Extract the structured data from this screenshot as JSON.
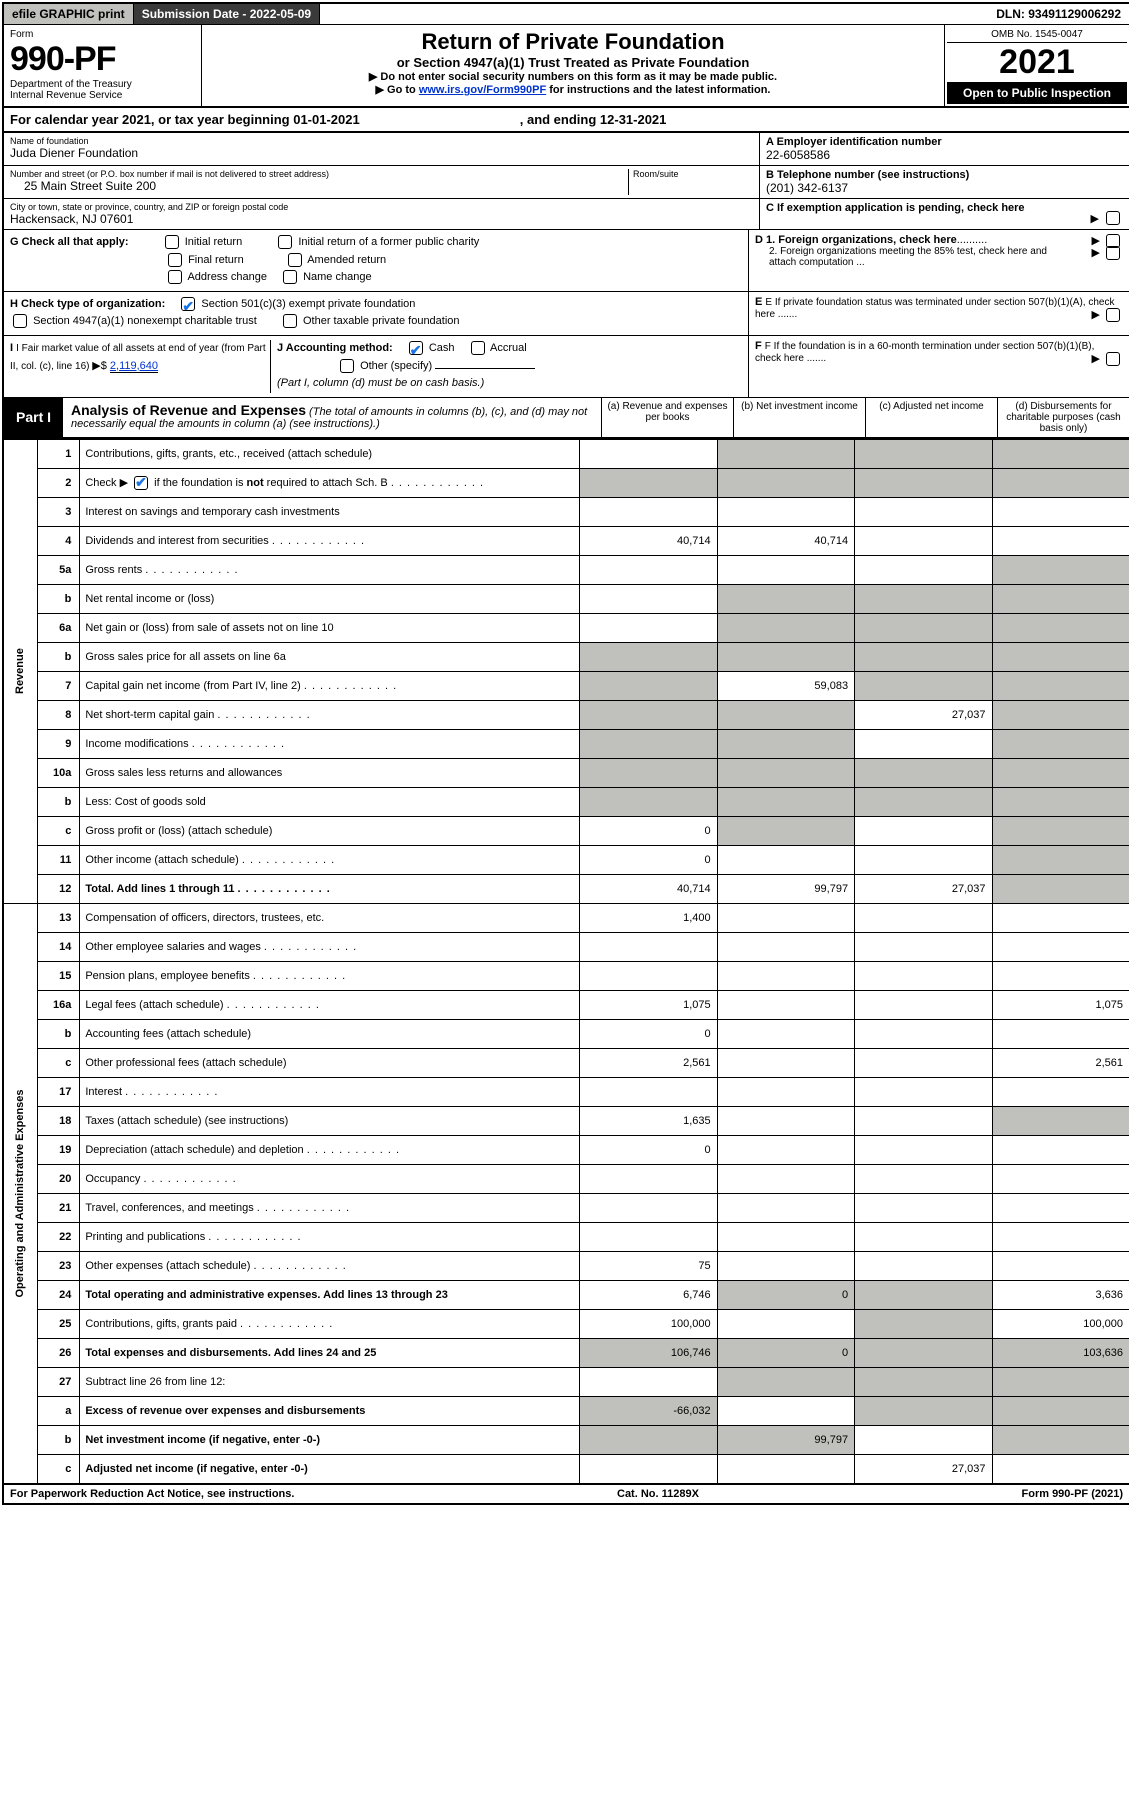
{
  "topbar": {
    "efile": "efile GRAPHIC print",
    "submission_label": "Submission Date - 2022-05-09",
    "dln": "DLN: 93491129006292"
  },
  "header": {
    "form_word": "Form",
    "form_num": "990-PF",
    "dept": "Department of the Treasury",
    "irs": "Internal Revenue Service",
    "title": "Return of Private Foundation",
    "subtitle": "or Section 4947(a)(1) Trust Treated as Private Foundation",
    "instr1": "▶ Do not enter social security numbers on this form as it may be made public.",
    "instr2_pre": "▶ Go to ",
    "instr2_link": "www.irs.gov/Form990PF",
    "instr2_post": " for instructions and the latest information.",
    "omb": "OMB No. 1545-0047",
    "year": "2021",
    "open": "Open to Public Inspection"
  },
  "cal": {
    "label": "For calendar year 2021, or tax year beginning 01-01-2021",
    "ending": ", and ending 12-31-2021"
  },
  "foundation": {
    "name_label": "Name of foundation",
    "name": "Juda Diener Foundation",
    "addr_label": "Number and street (or P.O. box number if mail is not delivered to street address)",
    "room_label": "Room/suite",
    "addr": "25 Main Street Suite 200",
    "city_label": "City or town, state or province, country, and ZIP or foreign postal code",
    "city": "Hackensack, NJ  07601",
    "ein_label": "A Employer identification number",
    "ein": "22-6058586",
    "phone_label": "B Telephone number (see instructions)",
    "phone": "(201) 342-6137",
    "c_label": "C If exemption application is pending, check here"
  },
  "checks": {
    "g_label": "G Check all that apply:",
    "initial": "Initial return",
    "initial_former": "Initial return of a former public charity",
    "final": "Final return",
    "amended": "Amended return",
    "addr_change": "Address change",
    "name_change": "Name change",
    "d1": "D 1. Foreign organizations, check here",
    "d2": "2. Foreign organizations meeting the 85% test, check here and attach computation ...",
    "h_label": "H Check type of organization:",
    "h_501c3": "Section 501(c)(3) exempt private foundation",
    "h_4947": "Section 4947(a)(1) nonexempt charitable trust",
    "h_other": "Other taxable private foundation",
    "e_label": "E  If private foundation status was terminated under section 507(b)(1)(A), check here .......",
    "i_label": "I Fair market value of all assets at end of year (from Part II, col. (c), line 16) ",
    "i_arrow": "▶$",
    "i_val": "2,119,640",
    "j_label": "J Accounting method:",
    "cash": "Cash",
    "accrual": "Accrual",
    "other_spec": "Other (specify)",
    "cash_basis": "(Part I, column (d) must be on cash basis.)",
    "f_label": "F  If the foundation is in a 60-month termination under section 507(b)(1)(B), check here ......."
  },
  "part1": {
    "badge": "Part I",
    "title": "Analysis of Revenue and Expenses",
    "title_sub": " (The total of amounts in columns (b), (c), and (d) may not necessarily equal the amounts in column (a) (see instructions).)",
    "col_a": "(a) Revenue and expenses per books",
    "col_b": "(b) Net investment income",
    "col_c": "(c) Adjusted net income",
    "col_d": "(d) Disbursements for charitable purposes (cash basis only)"
  },
  "rows": [
    {
      "n": "1",
      "label": "Contributions, gifts, grants, etc., received (attach schedule)"
    },
    {
      "n": "2",
      "label": "Check ▶ ☑ if the foundation is not required to attach Sch. B"
    },
    {
      "n": "3",
      "label": "Interest on savings and temporary cash investments"
    },
    {
      "n": "4",
      "label": "Dividends and interest from securities",
      "a": "40,714",
      "b": "40,714"
    },
    {
      "n": "5a",
      "label": "Gross rents"
    },
    {
      "n": "b",
      "label": "Net rental income or (loss)"
    },
    {
      "n": "6a",
      "label": "Net gain or (loss) from sale of assets not on line 10"
    },
    {
      "n": "b",
      "label": "Gross sales price for all assets on line 6a"
    },
    {
      "n": "7",
      "label": "Capital gain net income (from Part IV, line 2)",
      "b": "59,083"
    },
    {
      "n": "8",
      "label": "Net short-term capital gain",
      "c": "27,037"
    },
    {
      "n": "9",
      "label": "Income modifications"
    },
    {
      "n": "10a",
      "label": "Gross sales less returns and allowances"
    },
    {
      "n": "b",
      "label": "Less: Cost of goods sold"
    },
    {
      "n": "c",
      "label": "Gross profit or (loss) (attach schedule)",
      "a": "0"
    },
    {
      "n": "11",
      "label": "Other income (attach schedule)",
      "a": "0"
    },
    {
      "n": "12",
      "label": "Total. Add lines 1 through 11",
      "bold": true,
      "a": "40,714",
      "b": "99,797",
      "c": "27,037"
    },
    {
      "n": "13",
      "label": "Compensation of officers, directors, trustees, etc.",
      "a": "1,400"
    },
    {
      "n": "14",
      "label": "Other employee salaries and wages"
    },
    {
      "n": "15",
      "label": "Pension plans, employee benefits"
    },
    {
      "n": "16a",
      "label": "Legal fees (attach schedule)",
      "a": "1,075",
      "d": "1,075"
    },
    {
      "n": "b",
      "label": "Accounting fees (attach schedule)",
      "a": "0"
    },
    {
      "n": "c",
      "label": "Other professional fees (attach schedule)",
      "a": "2,561",
      "d": "2,561"
    },
    {
      "n": "17",
      "label": "Interest"
    },
    {
      "n": "18",
      "label": "Taxes (attach schedule) (see instructions)",
      "a": "1,635"
    },
    {
      "n": "19",
      "label": "Depreciation (attach schedule) and depletion",
      "a": "0"
    },
    {
      "n": "20",
      "label": "Occupancy"
    },
    {
      "n": "21",
      "label": "Travel, conferences, and meetings"
    },
    {
      "n": "22",
      "label": "Printing and publications"
    },
    {
      "n": "23",
      "label": "Other expenses (attach schedule)",
      "a": "75"
    },
    {
      "n": "24",
      "label": "Total operating and administrative expenses. Add lines 13 through 23",
      "bold": true,
      "a": "6,746",
      "b": "0",
      "d": "3,636"
    },
    {
      "n": "25",
      "label": "Contributions, gifts, grants paid",
      "a": "100,000",
      "d": "100,000"
    },
    {
      "n": "26",
      "label": "Total expenses and disbursements. Add lines 24 and 25",
      "bold": true,
      "a": "106,746",
      "b": "0",
      "d": "103,636"
    },
    {
      "n": "27",
      "label": "Subtract line 26 from line 12:"
    },
    {
      "n": "a",
      "label": "Excess of revenue over expenses and disbursements",
      "bold": true,
      "a": "-66,032"
    },
    {
      "n": "b",
      "label": "Net investment income (if negative, enter -0-)",
      "bold": true,
      "b": "99,797"
    },
    {
      "n": "c",
      "label": "Adjusted net income (if negative, enter -0-)",
      "bold": true,
      "c": "27,037"
    }
  ],
  "side_revenue": "Revenue",
  "side_expenses": "Operating and Administrative Expenses",
  "footer": {
    "left": "For Paperwork Reduction Act Notice, see instructions.",
    "center": "Cat. No. 11289X",
    "right": "Form 990-PF (2021)"
  },
  "grey_map": {
    "1": {
      "d": "g"
    },
    "2": {
      "a": "g",
      "b": "g",
      "c": "g",
      "d": "g"
    },
    "5a": {
      "d": "g"
    },
    "b_rent": {
      "a": "g",
      "c": "g",
      "d": "g"
    },
    "6a": {
      "b": "g",
      "c": "g",
      "d": "g"
    },
    "b_sales": {
      "a": "g",
      "b": "g",
      "c": "g",
      "d": "g"
    },
    "7": {
      "a": "g",
      "c": "g",
      "d": "g"
    },
    "8": {
      "a": "g",
      "b": "g",
      "d": "g"
    },
    "9": {
      "a": "g",
      "b": "g",
      "d": "g"
    },
    "10a": {
      "a": "g",
      "b": "g",
      "c": "g",
      "d": "g"
    },
    "b_cogs": {
      "a": "g",
      "b": "g",
      "c": "g",
      "d": "g"
    },
    "c_gp": {
      "b": "g",
      "d": "g"
    },
    "11": {
      "d": "g"
    },
    "12": {
      "d": "g"
    },
    "19": {
      "d": "g"
    },
    "25": {
      "b": "g",
      "c": "g"
    },
    "26": {
      "c": "g"
    },
    "27": {
      "a": "g",
      "b": "g",
      "c": "g",
      "d": "g"
    },
    "a27": {
      "b": "g",
      "c": "g",
      "d": "g"
    },
    "b27": {
      "a": "g",
      "c": "g",
      "d": "g"
    },
    "c27": {
      "a": "g",
      "b": "g",
      "d": "g"
    }
  }
}
